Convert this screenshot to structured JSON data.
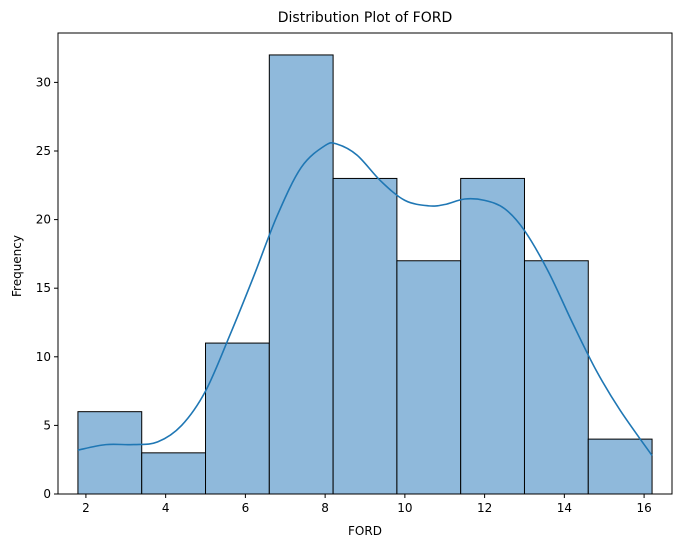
{
  "chart_data": {
    "type": "bar",
    "subtype": "histogram-with-kde",
    "title": "Distribution Plot of FORD",
    "xlabel": "FORD",
    "ylabel": "Frequency",
    "xlim": [
      1.3,
      16.7
    ],
    "ylim": [
      0,
      33.6
    ],
    "x_ticks": [
      2,
      4,
      6,
      8,
      10,
      12,
      14,
      16
    ],
    "y_ticks": [
      0,
      5,
      10,
      15,
      20,
      25,
      30
    ],
    "bins": [
      {
        "start": 1.8,
        "end": 3.4,
        "count": 6
      },
      {
        "start": 3.4,
        "end": 5.0,
        "count": 3
      },
      {
        "start": 5.0,
        "end": 6.6,
        "count": 11
      },
      {
        "start": 6.6,
        "end": 8.2,
        "count": 32
      },
      {
        "start": 8.2,
        "end": 9.8,
        "count": 23
      },
      {
        "start": 9.8,
        "end": 11.4,
        "count": 17
      },
      {
        "start": 11.4,
        "end": 13.0,
        "count": 23
      },
      {
        "start": 13.0,
        "end": 14.6,
        "count": 17
      },
      {
        "start": 14.6,
        "end": 16.2,
        "count": 4
      }
    ],
    "kde": {
      "x": [
        1.8,
        2.5,
        3.2,
        3.8,
        4.4,
        5.0,
        5.6,
        6.2,
        6.8,
        7.4,
        8.0,
        8.3,
        8.8,
        9.4,
        10.0,
        10.6,
        11.0,
        11.5,
        12.0,
        12.5,
        13.0,
        13.6,
        14.2,
        14.8,
        15.4,
        16.2
      ],
      "y": [
        3.2,
        3.6,
        3.6,
        3.8,
        5.0,
        7.5,
        11.5,
        15.8,
        20.3,
        23.8,
        25.4,
        25.5,
        24.7,
        22.8,
        21.4,
        21.0,
        21.1,
        21.5,
        21.4,
        20.8,
        19.2,
        16.2,
        12.5,
        9.0,
        6.1,
        2.8
      ]
    },
    "grid": false,
    "colors": {
      "bar_fill": "#8fb9db",
      "bar_edge": "#000000",
      "kde_line": "#1f77b4"
    }
  }
}
